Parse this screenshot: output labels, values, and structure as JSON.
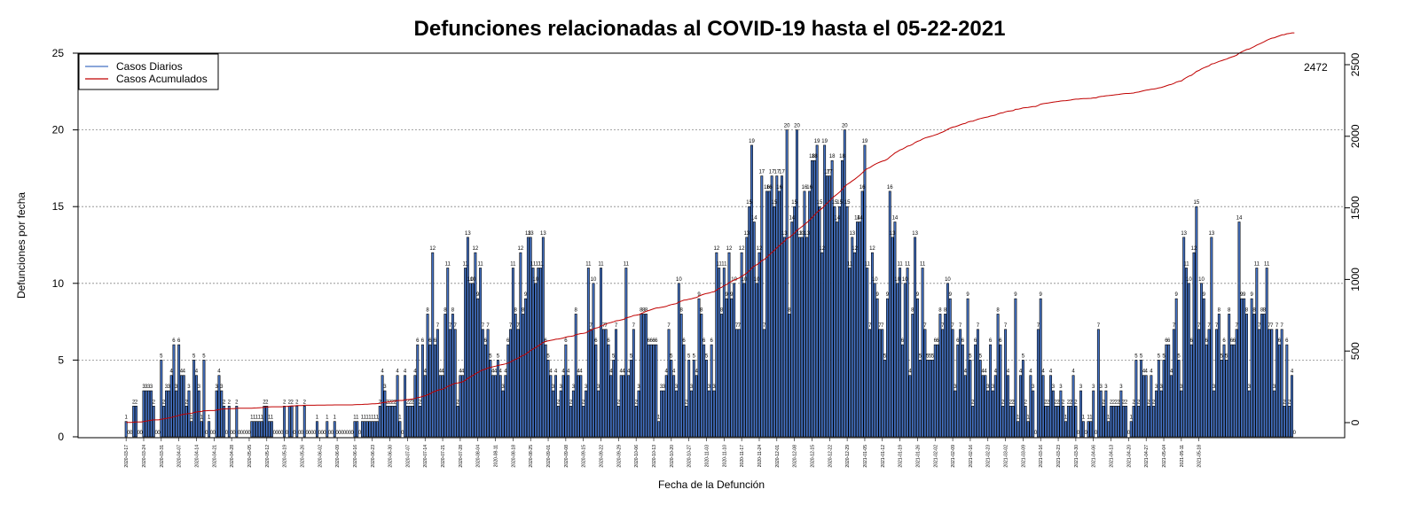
{
  "chart_data": {
    "type": "bar",
    "title": "Defunciones relacionadas al COVID-19 hasta el 05-22-2021",
    "xlabel": "Fecha de la Defunción",
    "ylabel": "Defunciones por fecha",
    "ylim": [
      0,
      25
    ],
    "yticks": [
      0,
      5,
      10,
      15,
      20,
      25
    ],
    "y2lim": [
      -80,
      2550
    ],
    "y2ticks": [
      0,
      500,
      1000,
      1500,
      2000,
      2500
    ],
    "grid": "horizontal dotted",
    "legend_position": "top-left",
    "x_start": "2020-03-17",
    "x_end": "2021-05-20",
    "x_tick_labels": [
      "2020-03-17",
      "2020-03-24",
      "2020-03-31",
      "2020-04-07",
      "2020-04-14",
      "2020-04-21",
      "2020-04-28",
      "2020-05-05",
      "2020-05-12",
      "2020-05-19",
      "2020-05-26",
      "2020-06-02",
      "2020-06-09",
      "2020-06-16",
      "2020-06-23",
      "2020-06-30",
      "2020-07-07",
      "2020-07-14",
      "2020-07-21",
      "2020-07-28",
      "2020-08-04",
      "2020-08-11",
      "2020-08-18",
      "2020-08-25",
      "2020-09-01",
      "2020-09-08",
      "2020-09-15",
      "2020-09-22",
      "2020-09-29",
      "2020-10-06",
      "2020-10-13",
      "2020-10-20",
      "2020-10-27",
      "2020-11-03",
      "2020-11-10",
      "2020-11-17",
      "2020-11-24",
      "2020-12-01",
      "2020-12-08",
      "2020-12-15",
      "2020-12-22",
      "2020-12-29",
      "2021-01-05",
      "2021-01-12",
      "2021-01-19",
      "2021-01-26",
      "2021-02-02",
      "2021-02-09",
      "2021-02-16",
      "2021-02-23",
      "2021-03-02",
      "2021-03-09",
      "2021-03-16",
      "2021-03-23",
      "2021-03-30",
      "2021-04-06",
      "2021-04-13",
      "2021-04-20",
      "2021-04-27",
      "2021-05-04",
      "2021-05-11",
      "2021-05-18"
    ],
    "series": [
      {
        "name": "Casos Diarios",
        "color": "#4472c4",
        "type": "bar",
        "values": [
          1,
          0,
          0,
          2,
          2,
          0,
          0,
          3,
          3,
          3,
          3,
          2,
          0,
          0,
          5,
          2,
          3,
          3,
          4,
          6,
          3,
          6,
          4,
          4,
          2,
          3,
          1,
          5,
          4,
          3,
          1,
          5,
          0,
          1,
          0,
          0,
          3,
          4,
          3,
          2,
          0,
          2,
          0,
          0,
          2,
          0,
          0,
          0,
          0,
          0,
          1,
          1,
          1,
          1,
          1,
          2,
          2,
          1,
          1,
          0,
          0,
          0,
          0,
          2,
          0,
          2,
          2,
          0,
          2,
          0,
          0,
          2,
          0,
          0,
          0,
          0,
          1,
          0,
          0,
          0,
          1,
          0,
          0,
          1,
          0,
          0,
          0,
          0,
          0,
          0,
          0,
          1,
          1,
          0,
          1,
          1,
          1,
          1,
          1,
          1,
          1,
          2,
          4,
          3,
          2,
          2,
          2,
          2,
          4,
          1,
          0,
          4,
          2,
          2,
          2,
          4,
          6,
          2,
          6,
          4,
          8,
          6,
          12,
          6,
          7,
          4,
          4,
          8,
          11,
          7,
          8,
          7,
          2,
          4,
          4,
          11,
          13,
          10,
          10,
          12,
          9,
          11,
          7,
          6,
          7,
          5,
          4,
          4,
          5,
          4,
          3,
          4,
          6,
          7,
          11,
          8,
          7,
          12,
          8,
          9,
          13,
          13,
          11,
          10,
          11,
          11,
          13,
          6,
          5,
          4,
          3,
          4,
          2,
          3,
          4,
          6,
          4,
          2,
          3,
          8,
          4,
          4,
          2,
          3,
          11,
          7,
          10,
          6,
          3,
          11,
          7,
          7,
          6,
          4,
          5,
          7,
          2,
          4,
          4,
          11,
          4,
          5,
          7,
          2,
          3,
          8,
          8,
          8,
          6,
          6,
          6,
          6,
          1,
          3,
          3,
          4,
          7,
          5,
          4,
          3,
          10,
          8,
          6,
          2,
          5,
          3,
          5,
          4,
          9,
          8,
          6,
          5,
          3,
          6,
          3,
          12,
          11,
          8,
          11,
          9,
          12,
          9,
          10,
          7,
          7,
          12,
          10,
          13,
          15,
          19,
          14,
          10,
          12,
          17,
          7,
          16,
          16,
          17,
          15,
          17,
          16,
          17,
          13,
          20,
          8,
          14,
          15,
          20,
          13,
          13,
          16,
          13,
          16,
          18,
          18,
          19,
          15,
          12,
          19,
          17,
          17,
          18,
          15,
          14,
          15,
          18,
          20,
          15,
          11,
          13,
          12,
          14,
          14,
          16,
          19,
          11,
          7,
          12,
          10,
          9,
          7,
          7,
          5,
          9,
          16,
          13,
          14,
          10,
          11,
          6,
          10,
          11,
          4,
          8,
          13,
          9,
          5,
          11,
          7,
          5,
          5,
          5,
          6,
          6,
          8,
          7,
          8,
          10,
          9,
          7,
          3,
          6,
          7,
          6,
          4,
          9,
          5,
          2,
          6,
          7,
          5,
          4,
          4,
          3,
          6,
          3,
          4,
          8,
          6,
          2,
          7,
          4,
          2,
          2,
          9,
          1,
          4,
          5,
          2,
          1,
          4,
          3,
          0,
          7,
          9,
          4,
          2,
          2,
          4,
          3,
          2,
          2,
          3,
          2,
          1,
          2,
          2,
          4,
          2,
          0,
          3,
          1,
          0,
          1,
          1,
          3,
          0,
          7,
          3,
          2,
          3,
          1,
          2,
          2,
          2,
          2,
          3,
          2,
          2,
          0,
          1,
          2,
          5,
          2,
          5,
          4,
          4,
          2,
          4,
          2,
          3,
          5,
          3,
          5,
          6,
          6,
          4,
          7,
          9,
          5,
          3,
          13,
          11,
          10,
          6,
          12,
          15,
          7,
          10,
          9,
          6,
          7,
          13,
          3,
          7,
          8,
          5,
          6,
          5,
          8,
          6,
          6,
          7,
          14,
          9,
          9,
          8,
          3,
          9,
          8,
          11,
          7,
          8,
          8,
          11,
          7,
          7,
          3,
          7,
          6,
          7,
          2,
          6,
          2,
          4,
          0
        ]
      },
      {
        "name": "Casos Acumulados",
        "color": "#c00000",
        "type": "line",
        "axis": "right",
        "final_value": 2472
      }
    ]
  }
}
